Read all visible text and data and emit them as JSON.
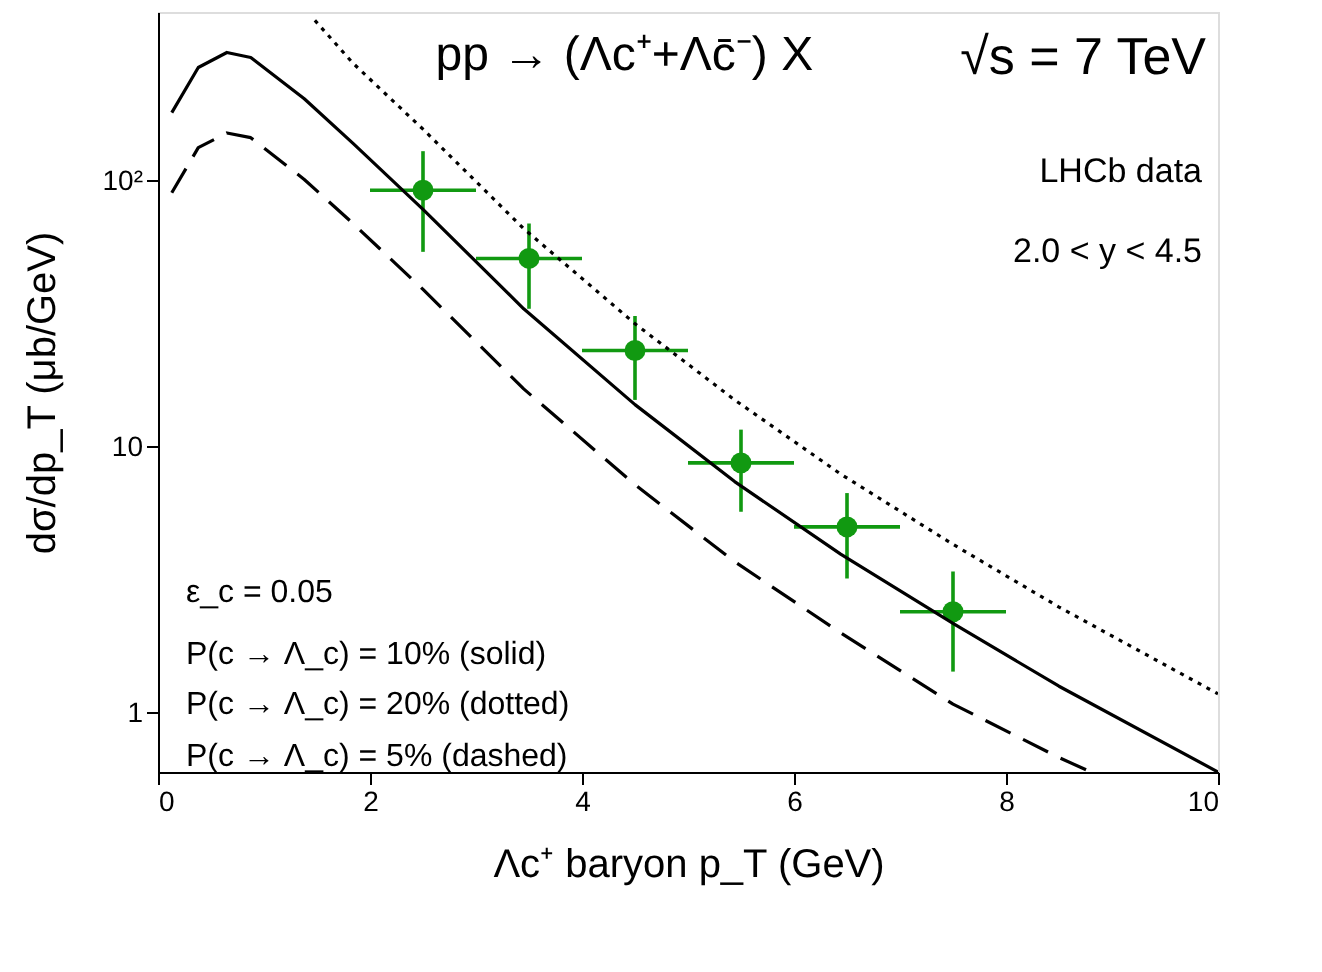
{
  "chart_data": {
    "type": "scatter",
    "title": "pp → (Λc⁺+Λc̄⁻) X",
    "xlabel": "Λc⁺ baryon  p_T    (GeV)",
    "ylabel": "dσ/dp_T    (μb/GeV)",
    "annotations": [
      "√s = 7 TeV",
      "LHCb data",
      "2.0 < y < 4.5",
      "ε_c = 0.05",
      "P(c → Λ_c) = 10% (solid)",
      "P(c → Λ_c) = 20% (dotted)",
      "P(c → Λ_c) = 5% (dashed)"
    ],
    "xlim": [
      0,
      10
    ],
    "xticks": [
      0,
      2,
      4,
      6,
      8,
      10
    ],
    "ylim": [
      0.6,
      430
    ],
    "yticks": [
      1,
      10,
      {
        "value": 100,
        "label": "10²"
      }
    ],
    "log": true,
    "grid": false,
    "series": [
      {
        "color": "#119911",
        "marker": "circle",
        "x": [
          2.5,
          3.5,
          4.5,
          5.5,
          6.5,
          7.5
        ],
        "values": [
          92,
          51,
          23,
          8.7,
          5.0,
          2.4
        ],
        "errors": [
          [
            54,
            129
          ],
          [
            33,
            69
          ],
          [
            15,
            31
          ],
          [
            5.7,
            11.6
          ],
          [
            3.2,
            6.7
          ],
          [
            1.43,
            3.4
          ]
        ],
        "xerrors": [
          0.5,
          0.5,
          0.5,
          0.5,
          0.5,
          0.5
        ]
      },
      {
        "type": "line",
        "color": "#000000",
        "line_style": "solid",
        "x": [
          0.13,
          0.38,
          0.65,
          0.875,
          1.38,
          1.84,
          2.5,
          3.45,
          4.5,
          5.44,
          6.44,
          7.5,
          8.5,
          10
        ],
        "values": [
          180,
          266,
          303,
          290,
          203,
          138,
          78,
          33,
          14.4,
          7.4,
          3.95,
          2.17,
          1.26,
          0.6
        ]
      },
      {
        "type": "line",
        "color": "#000000",
        "line_style": "dotted",
        "x": [
          1.48,
          1.84,
          2.5,
          3.45,
          4.5,
          5.44,
          6.44,
          7.5,
          8.5,
          10
        ],
        "values": [
          400,
          276,
          156,
          66,
          29,
          15,
          7.9,
          4.3,
          2.5,
          1.18
        ]
      },
      {
        "type": "line",
        "color": "#000000",
        "line_style": "dashed",
        "x": [
          0.13,
          0.38,
          0.65,
          0.875,
          1.38,
          1.84,
          2.5,
          3.45,
          4.5,
          5.44,
          6.44,
          7.5,
          8.5,
          8.8
        ],
        "values": [
          90,
          133,
          151,
          145,
          101,
          69,
          39,
          16.5,
          7.2,
          3.7,
          2.0,
          1.08,
          0.68,
          0.6
        ]
      }
    ]
  }
}
